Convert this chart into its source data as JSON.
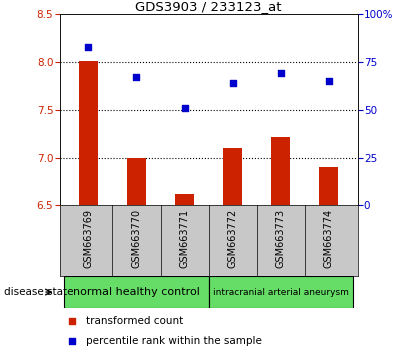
{
  "title": "GDS3903 / 233123_at",
  "samples": [
    "GSM663769",
    "GSM663770",
    "GSM663771",
    "GSM663772",
    "GSM663773",
    "GSM663774"
  ],
  "transformed_count": [
    8.01,
    7.0,
    6.62,
    7.1,
    7.22,
    6.9
  ],
  "percentile_rank": [
    83,
    67,
    51,
    64,
    69,
    65
  ],
  "ylim_left": [
    6.5,
    8.5
  ],
  "ylim_right": [
    0,
    100
  ],
  "yticks_left": [
    6.5,
    7.0,
    7.5,
    8.0,
    8.5
  ],
  "yticks_right": [
    0,
    25,
    50,
    75,
    100
  ],
  "ytick_labels_right": [
    "0",
    "25",
    "50",
    "75",
    "100%"
  ],
  "bar_color": "#cc2200",
  "dot_color": "#0000cc",
  "group1_label": "normal healthy control",
  "group2_label": "intracranial arterial aneurysm",
  "group1_color": "#66dd66",
  "group2_color": "#66dd66",
  "disease_state_label": "disease state",
  "legend_bar_label": "transformed count",
  "legend_dot_label": "percentile rank within the sample",
  "bar_bottom": 6.5,
  "tick_label_color_left": "#cc2200",
  "tick_label_color_right": "#0000cc",
  "sample_bg_color": "#c8c8c8",
  "plot_bg_color": "#ffffff"
}
